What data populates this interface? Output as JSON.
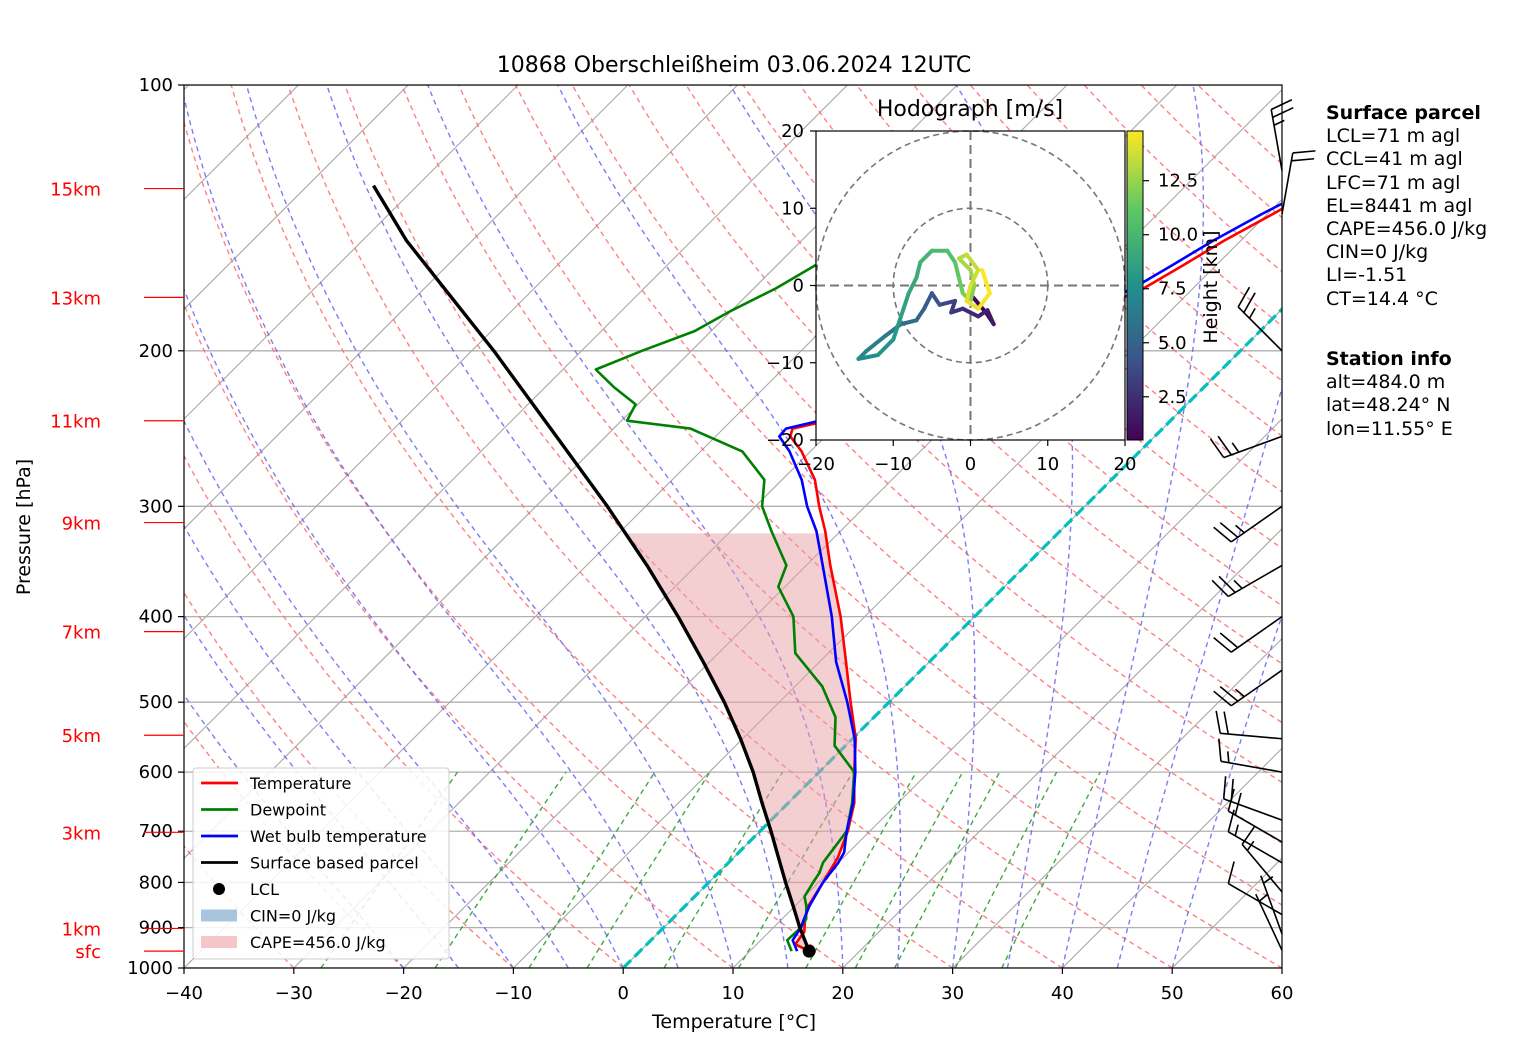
{
  "chart_data": {
    "type": "skew-t",
    "title": "10868 Oberschleißheim 03.06.2024 12UTC",
    "xlabel": "Temperature [°C]",
    "ylabel": "Pressure [hPa]",
    "xlim": [
      -40,
      60
    ],
    "ylim": [
      1000,
      100
    ],
    "y_log_scale": true,
    "grid": true,
    "x_ticks": [
      -40,
      -30,
      -20,
      -10,
      0,
      10,
      20,
      30,
      40,
      50,
      60
    ],
    "x_tick_labels": [
      "−40",
      "−30",
      "−20",
      "−10",
      "0",
      "10",
      "20",
      "30",
      "40",
      "50",
      "60"
    ],
    "p_ticks": [
      1000,
      900,
      800,
      700,
      600,
      500,
      400,
      300,
      200,
      100
    ],
    "p_tick_labels": [
      "1000",
      "900",
      "800",
      "700",
      "600",
      "500",
      "400",
      "300",
      "200",
      "100"
    ],
    "height_labels": [
      {
        "label": "sfc",
        "p": 957
      },
      {
        "label": "1km",
        "p": 902
      },
      {
        "label": "3km",
        "p": 702
      },
      {
        "label": "5km",
        "p": 545
      },
      {
        "label": "7km",
        "p": 416
      },
      {
        "label": "9km",
        "p": 313
      },
      {
        "label": "11km",
        "p": 240
      },
      {
        "label": "13km",
        "p": 174
      },
      {
        "label": "15km",
        "p": 131
      }
    ],
    "height_label_color": "#ff0000",
    "series": [
      {
        "name": "Temperature",
        "color": "#ff0000",
        "points": [
          [
            957,
            15.4
          ],
          [
            940,
            13.5
          ],
          [
            910,
            13.2
          ],
          [
            880,
            12.1
          ],
          [
            850,
            11.2
          ],
          [
            800,
            10.4
          ],
          [
            750,
            9.5
          ],
          [
            700,
            8.0
          ],
          [
            650,
            6.0
          ],
          [
            600,
            3.2
          ],
          [
            550,
            0.3
          ],
          [
            500,
            -3.5
          ],
          [
            450,
            -7.6
          ],
          [
            400,
            -12.2
          ],
          [
            350,
            -17.8
          ],
          [
            320,
            -21.4
          ],
          [
            300,
            -24.2
          ],
          [
            280,
            -27.0
          ],
          [
            260,
            -30.8
          ],
          [
            250,
            -33.2
          ],
          [
            245,
            -33.7
          ],
          [
            238,
            -30.2
          ],
          [
            230,
            -27.5
          ],
          [
            220,
            -25.0
          ],
          [
            210,
            -23.0
          ],
          [
            200,
            -22.0
          ],
          [
            190,
            -19.5
          ],
          [
            180,
            -17.0
          ],
          [
            170,
            -14.5
          ],
          [
            160,
            -13.0
          ],
          [
            150,
            -11.5
          ],
          [
            140,
            -9.5
          ],
          [
            135,
            -8.5
          ],
          [
            130,
            -7.5
          ]
        ]
      },
      {
        "name": "Dewpoint",
        "color": "#008000",
        "points": [
          [
            957,
            13.8
          ],
          [
            930,
            12.4
          ],
          [
            900,
            12.5
          ],
          [
            880,
            12.2
          ],
          [
            850,
            11.0
          ],
          [
            830,
            10.0
          ],
          [
            800,
            9.5
          ],
          [
            780,
            9.2
          ],
          [
            760,
            8.6
          ],
          [
            700,
            7.9
          ],
          [
            650,
            5.8
          ],
          [
            600,
            3.2
          ],
          [
            560,
            -1.0
          ],
          [
            520,
            -3.5
          ],
          [
            480,
            -7.5
          ],
          [
            440,
            -13.0
          ],
          [
            400,
            -16.5
          ],
          [
            370,
            -20.6
          ],
          [
            350,
            -21.8
          ],
          [
            320,
            -26.3
          ],
          [
            300,
            -29.4
          ],
          [
            280,
            -31.6
          ],
          [
            260,
            -36.2
          ],
          [
            245,
            -43.0
          ],
          [
            240,
            -49.5
          ],
          [
            230,
            -50.2
          ],
          [
            220,
            -53.7
          ],
          [
            210,
            -57.0
          ],
          [
            200,
            -54.5
          ],
          [
            190,
            -51.5
          ],
          [
            180,
            -50.0
          ],
          [
            170,
            -48.0
          ],
          [
            160,
            -46.5
          ],
          [
            150,
            -44.2
          ],
          [
            140,
            -40.5
          ],
          [
            130,
            -37.5
          ]
        ]
      },
      {
        "name": "Wet bulb temperature",
        "color": "#0000ff",
        "points": [
          [
            957,
            14.3
          ],
          [
            930,
            12.9
          ],
          [
            900,
            12.5
          ],
          [
            880,
            12.0
          ],
          [
            850,
            11.3
          ],
          [
            800,
            10.4
          ],
          [
            760,
            10.0
          ],
          [
            740,
            9.6
          ],
          [
            700,
            7.9
          ],
          [
            650,
            5.9
          ],
          [
            600,
            3.3
          ],
          [
            550,
            0.2
          ],
          [
            500,
            -3.8
          ],
          [
            450,
            -8.5
          ],
          [
            400,
            -13.0
          ],
          [
            350,
            -18.5
          ],
          [
            320,
            -22.2
          ],
          [
            300,
            -25.3
          ],
          [
            280,
            -28.2
          ],
          [
            260,
            -31.9
          ],
          [
            250,
            -34.2
          ],
          [
            245,
            -34.3
          ],
          [
            238,
            -31.0
          ],
          [
            230,
            -28.5
          ],
          [
            220,
            -26.0
          ],
          [
            210,
            -24.0
          ],
          [
            200,
            -23.0
          ],
          [
            190,
            -20.5
          ],
          [
            180,
            -18.0
          ],
          [
            170,
            -15.5
          ],
          [
            160,
            -14.0
          ],
          [
            150,
            -12.5
          ],
          [
            140,
            -10.5
          ],
          [
            135,
            -9.3
          ],
          [
            130,
            -8.3
          ]
        ]
      },
      {
        "name": "Surface based parcel",
        "color": "#000000",
        "points": [
          [
            957,
            15.4
          ],
          [
            900,
            12.4
          ],
          [
            850,
            9.8
          ],
          [
            800,
            7.0
          ],
          [
            750,
            4.1
          ],
          [
            700,
            1.0
          ],
          [
            650,
            -2.4
          ],
          [
            600,
            -6.0
          ],
          [
            550,
            -10.2
          ],
          [
            500,
            -15.0
          ],
          [
            450,
            -20.6
          ],
          [
            400,
            -27.0
          ],
          [
            350,
            -34.5
          ],
          [
            300,
            -43.5
          ],
          [
            250,
            -54.5
          ],
          [
            200,
            -68.0
          ],
          [
            150,
            -86.0
          ],
          [
            130,
            -94.0
          ]
        ]
      }
    ],
    "lcl_point": {
      "label": "LCL",
      "p": 957,
      "t": 15.4
    },
    "cape_fill": {
      "label": "CAPE=456.0 J/kg",
      "color": "#e8a0a6"
    },
    "cin_fill": {
      "label": "CIN=0 J/kg",
      "color": "#a9c5dd"
    },
    "freezing_line": {
      "color": "#00bfbf",
      "t": 0
    },
    "legend_position": "lower-left",
    "legend": [
      {
        "label": "Temperature",
        "color": "#ff0000",
        "kind": "line"
      },
      {
        "label": "Dewpoint",
        "color": "#008000",
        "kind": "line"
      },
      {
        "label": "Wet bulb temperature",
        "color": "#0000ff",
        "kind": "line"
      },
      {
        "label": "Surface based parcel",
        "color": "#000000",
        "kind": "line"
      },
      {
        "label": "LCL",
        "color": "#000000",
        "kind": "dot"
      },
      {
        "label": "CIN=0 J/kg",
        "color": "#a9c5dd",
        "kind": "patch"
      },
      {
        "label": "CAPE=456.0 J/kg",
        "color": "#f4c6c9",
        "kind": "patch"
      }
    ],
    "wind_barbs": [
      {
        "p": 955,
        "dir": 335,
        "spd_kt": 5
      },
      {
        "p": 915,
        "dir": 340,
        "spd_kt": 5
      },
      {
        "p": 870,
        "dir": 300,
        "spd_kt": 10
      },
      {
        "p": 820,
        "dir": 320,
        "spd_kt": 15
      },
      {
        "p": 760,
        "dir": 300,
        "spd_kt": 15
      },
      {
        "p": 720,
        "dir": 300,
        "spd_kt": 20
      },
      {
        "p": 680,
        "dir": 290,
        "spd_kt": 20
      },
      {
        "p": 600,
        "dir": 280,
        "spd_kt": 15
      },
      {
        "p": 550,
        "dir": 275,
        "spd_kt": 20
      },
      {
        "p": 460,
        "dir": 235,
        "spd_kt": 25
      },
      {
        "p": 400,
        "dir": 235,
        "spd_kt": 20
      },
      {
        "p": 350,
        "dir": 240,
        "spd_kt": 25
      },
      {
        "p": 300,
        "dir": 235,
        "spd_kt": 25
      },
      {
        "p": 250,
        "dir": 250,
        "spd_kt": 25
      },
      {
        "p": 200,
        "dir": 315,
        "spd_kt": 25
      },
      {
        "p": 140,
        "dir": 10,
        "spd_kt": 20
      },
      {
        "p": 125,
        "dir": 350,
        "spd_kt": 25
      }
    ],
    "hodograph": {
      "title": "Hodograph [m/s]",
      "xlim": [
        -20,
        20
      ],
      "ylim": [
        -20,
        20
      ],
      "ticks": [
        -20,
        -10,
        0,
        10,
        20
      ],
      "tick_labels": [
        "−20",
        "−10",
        "0",
        "10",
        "20"
      ],
      "rings": [
        10,
        20
      ],
      "colorbar_label": "Height [km]",
      "colorbar_ticks": [
        2.5,
        5.0,
        7.5,
        10.0,
        12.5
      ],
      "colorbar_range": [
        0.5,
        14.8
      ],
      "path": [
        [
          0.3,
          -1.5,
          0.5
        ],
        [
          2,
          -3.5,
          0.9
        ],
        [
          3,
          -5,
          1.3
        ],
        [
          2.2,
          -3.2,
          1.7
        ],
        [
          1,
          -4,
          2.1
        ],
        [
          -1,
          -3,
          2.5
        ],
        [
          -2.5,
          -3.5,
          2.9
        ],
        [
          -2,
          -2,
          3.3
        ],
        [
          -4,
          -2.5,
          3.8
        ],
        [
          -5,
          -1,
          4.3
        ],
        [
          -6,
          -3,
          4.8
        ],
        [
          -7,
          -4.5,
          5.3
        ],
        [
          -9,
          -5,
          5.8
        ],
        [
          -11,
          -6.5,
          6.3
        ],
        [
          -13.5,
          -8.5,
          6.8
        ],
        [
          -14.5,
          -9.5,
          7.2
        ],
        [
          -12,
          -9,
          7.6
        ],
        [
          -10,
          -7,
          8.0
        ],
        [
          -9,
          -4,
          8.4
        ],
        [
          -8,
          -1,
          8.8
        ],
        [
          -7,
          1,
          9.2
        ],
        [
          -6.5,
          3,
          9.6
        ],
        [
          -5,
          4.5,
          10.0
        ],
        [
          -3,
          4.5,
          10.4
        ],
        [
          -2,
          3,
          10.8
        ],
        [
          -1.5,
          1,
          11.2
        ],
        [
          -1,
          -1,
          11.6
        ],
        [
          0,
          -2,
          12.0
        ],
        [
          0.5,
          0,
          12.4
        ],
        [
          0,
          2,
          12.7
        ],
        [
          -1.5,
          3.5,
          13.0
        ],
        [
          -0.5,
          4,
          13.3
        ],
        [
          1,
          2,
          13.6
        ],
        [
          0,
          0,
          13.9
        ],
        [
          -0.5,
          -2,
          14.2
        ],
        [
          1,
          -3,
          14.5
        ],
        [
          2.5,
          -1,
          14.7
        ],
        [
          1.5,
          2,
          14.8
        ]
      ]
    }
  },
  "surface_parcel": {
    "title": "Surface parcel",
    "lines": [
      "LCL=71 m agl",
      "CCL=41 m agl",
      "LFC=71 m agl",
      "EL=8441 m agl",
      "CAPE=456.0 J/kg",
      "CIN=0 J/kg",
      "LI=-1.51",
      "CT=14.4 °C"
    ]
  },
  "station_info": {
    "title": "Station info",
    "lines": [
      "alt=484.0 m",
      "lat=48.24° N",
      "lon=11.55° E"
    ]
  }
}
